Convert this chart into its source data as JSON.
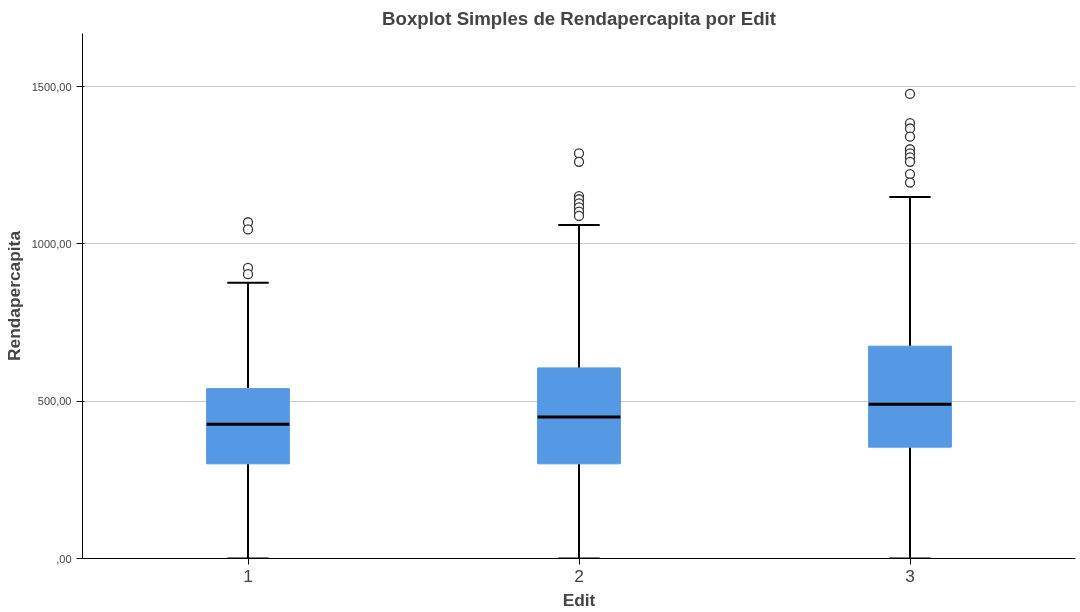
{
  "chart_data": {
    "type": "box",
    "title": "Boxplot Simples de Rendapercapita por Edit",
    "xlabel": "Edit",
    "ylabel": "Rendapercapita",
    "categories": [
      "1",
      "2",
      "3"
    ],
    "color": "#5598e3",
    "boxes": [
      {
        "low": 0,
        "q1": 301,
        "median": 427,
        "q3": 540,
        "high": 877,
        "outliers": [
          1069,
          1046,
          924,
          904
        ]
      },
      {
        "low": 0,
        "q1": 301,
        "median": 450,
        "q3": 606,
        "high": 1060,
        "outliers": [
          1288,
          1261,
          1152,
          1142,
          1129,
          1116,
          1103,
          1089
        ]
      },
      {
        "low": 0,
        "q1": 354,
        "median": 490,
        "q3": 675,
        "high": 1149,
        "outliers": [
          1477,
          1384,
          1367,
          1341,
          1301,
          1288,
          1275,
          1261,
          1222,
          1195
        ]
      }
    ],
    "ylim": [
      0,
      1669
    ],
    "yticks": [
      {
        "value": 0,
        "label": ",00"
      },
      {
        "value": 500,
        "label": "500,00"
      },
      {
        "value": 1000,
        "label": "1000,00"
      },
      {
        "value": 1500,
        "label": "1500,00"
      }
    ],
    "grid": "y"
  }
}
